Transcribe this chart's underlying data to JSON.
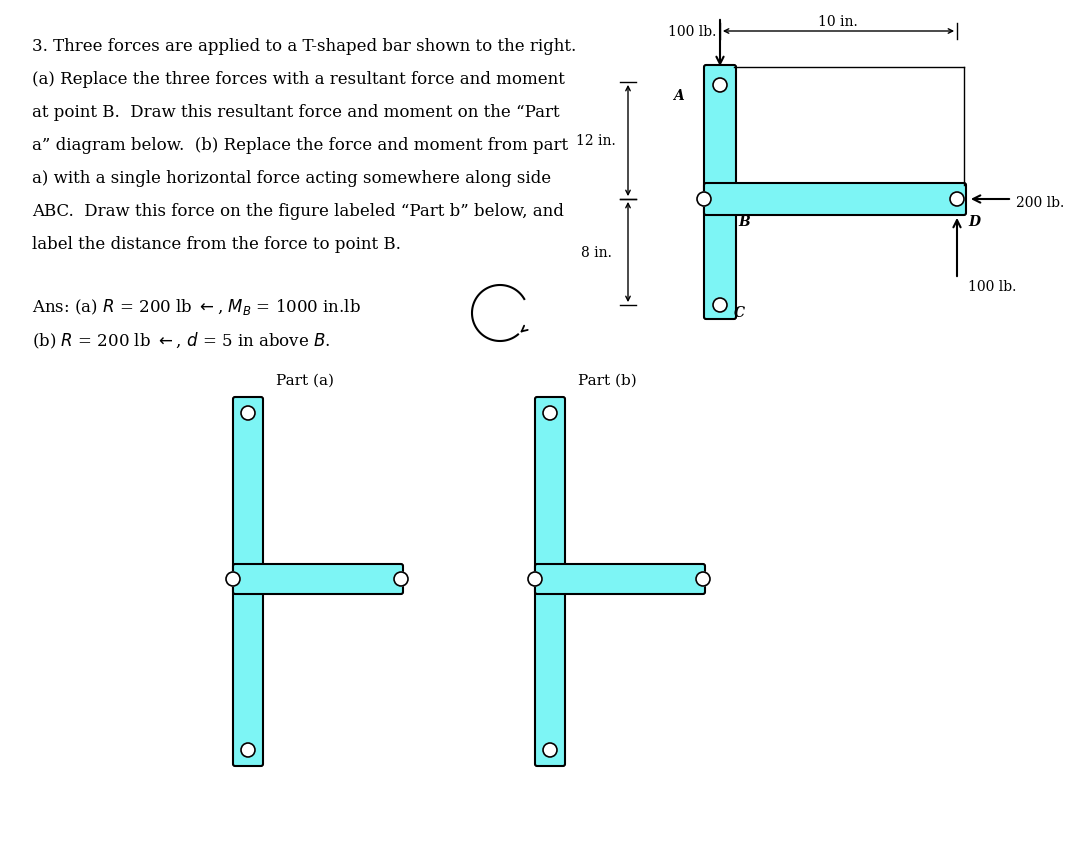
{
  "bg_color": "#ffffff",
  "bar_color": "#7df5f5",
  "bar_edge_color": "#000000",
  "problem_lines": [
    "3. Three forces are applied to a T-shaped bar shown to the right.",
    "(a) Replace the three forces with a resultant force and moment",
    "at point B.  Draw this resultant force and moment on the “Part",
    "a” diagram below.  (b) Replace the force and moment from part",
    "a) with a single horizontal force acting somewhere along side",
    "ABC.  Draw this force on the figure labeled “Part b” below, and",
    "label the distance from the force to point B."
  ],
  "ans_line1": "Ans: (a) R = 200 lb ←, M_B = 1000 in.lb",
  "ans_line2": "(b) R = 200 lb ←, d = 5 in above B.",
  "label_100lb_top": "100 lb.",
  "label_10in": "10 in.",
  "label_12in": "12 in.",
  "label_200lb": "200 lb.",
  "label_100lb_bot": "100 lb.",
  "label_8in": "8 in.",
  "label_A": "A",
  "label_B": "B",
  "label_C": "C",
  "label_D": "D",
  "part_a_label": "Part (a)",
  "part_b_label": "Part (b)"
}
